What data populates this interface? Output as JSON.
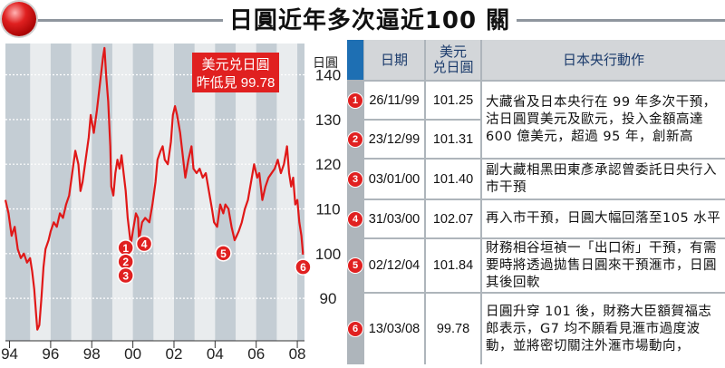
{
  "title": "日圓近年多次逼近100 關",
  "chart_data": {
    "type": "line",
    "x_range": [
      1993.8,
      2008.35
    ],
    "ylim": [
      80.5,
      147
    ],
    "y_ticks": [
      140,
      130,
      120,
      110,
      100,
      90
    ],
    "y_unit": "日圓",
    "x_ticks": [
      {
        "label": "94",
        "x": 1994
      },
      {
        "label": "96",
        "x": 1996
      },
      {
        "label": "98",
        "x": 1998
      },
      {
        "label": "00",
        "x": 2000
      },
      {
        "label": "02",
        "x": 2002
      },
      {
        "label": "04",
        "x": 2004
      },
      {
        "label": "06",
        "x": 2006
      },
      {
        "label": "08",
        "x": 2008
      }
    ],
    "shaded_periods": [
      [
        1993.8,
        1995.0
      ],
      [
        1996.0,
        1997.0
      ],
      [
        1998.0,
        1999.0
      ],
      [
        2000.0,
        2001.0
      ],
      [
        2002.0,
        2003.0
      ],
      [
        2004.0,
        2005.0
      ],
      [
        2006.0,
        2007.0
      ],
      [
        2008.0,
        2008.35
      ]
    ],
    "callout": {
      "line1": "美元兑日圓",
      "line2": "昨低見 99.78"
    },
    "series": [
      {
        "color": "#e01818",
        "points": [
          [
            1993.8,
            112
          ],
          [
            1993.95,
            109
          ],
          [
            1994.1,
            104
          ],
          [
            1994.25,
            106
          ],
          [
            1994.4,
            101
          ],
          [
            1994.55,
            99
          ],
          [
            1994.7,
            100
          ],
          [
            1994.85,
            98
          ],
          [
            1995.0,
            99
          ],
          [
            1995.1,
            96
          ],
          [
            1995.2,
            92
          ],
          [
            1995.3,
            86
          ],
          [
            1995.35,
            83
          ],
          [
            1995.45,
            84
          ],
          [
            1995.55,
            90
          ],
          [
            1995.65,
            97
          ],
          [
            1995.75,
            101
          ],
          [
            1995.9,
            103
          ],
          [
            1996.0,
            105
          ],
          [
            1996.15,
            107
          ],
          [
            1996.3,
            106
          ],
          [
            1996.45,
            109
          ],
          [
            1996.6,
            108
          ],
          [
            1996.75,
            111
          ],
          [
            1996.9,
            113
          ],
          [
            1997.05,
            118
          ],
          [
            1997.2,
            123
          ],
          [
            1997.35,
            120
          ],
          [
            1997.45,
            114
          ],
          [
            1997.55,
            116
          ],
          [
            1997.7,
            121
          ],
          [
            1997.85,
            126
          ],
          [
            1997.95,
            131
          ],
          [
            1998.1,
            127
          ],
          [
            1998.25,
            132
          ],
          [
            1998.4,
            138
          ],
          [
            1998.55,
            144
          ],
          [
            1998.62,
            146
          ],
          [
            1998.7,
            140
          ],
          [
            1998.8,
            134
          ],
          [
            1998.9,
            124
          ],
          [
            1998.95,
            115
          ],
          [
            1999.05,
            113
          ],
          [
            1999.15,
            118
          ],
          [
            1999.25,
            121
          ],
          [
            1999.35,
            119
          ],
          [
            1999.45,
            122
          ],
          [
            1999.55,
            118
          ],
          [
            1999.65,
            114
          ],
          [
            1999.75,
            108
          ],
          [
            1999.85,
            104
          ],
          [
            1999.9,
            102
          ],
          [
            2000.0,
            105
          ],
          [
            2000.15,
            109
          ],
          [
            2000.25,
            108
          ],
          [
            2000.3,
            103
          ],
          [
            2000.45,
            107
          ],
          [
            2000.6,
            108
          ],
          [
            2000.8,
            107
          ],
          [
            2000.95,
            111
          ],
          [
            2001.1,
            116
          ],
          [
            2001.2,
            121
          ],
          [
            2001.35,
            123
          ],
          [
            2001.45,
            124
          ],
          [
            2001.55,
            121
          ],
          [
            2001.7,
            120
          ],
          [
            2001.85,
            125
          ],
          [
            2001.95,
            131
          ],
          [
            2002.05,
            133
          ],
          [
            2002.15,
            131
          ],
          [
            2002.3,
            127
          ],
          [
            2002.45,
            121
          ],
          [
            2002.55,
            117
          ],
          [
            2002.7,
            121
          ],
          [
            2002.85,
            124
          ],
          [
            2002.95,
            119
          ],
          [
            2003.1,
            118
          ],
          [
            2003.25,
            119
          ],
          [
            2003.4,
            117
          ],
          [
            2003.55,
            118
          ],
          [
            2003.7,
            114
          ],
          [
            2003.85,
            110
          ],
          [
            2003.95,
            107
          ],
          [
            2004.1,
            106
          ],
          [
            2004.25,
            111
          ],
          [
            2004.4,
            109
          ],
          [
            2004.5,
            111
          ],
          [
            2004.65,
            110
          ],
          [
            2004.8,
            106
          ],
          [
            2004.95,
            103
          ],
          [
            2005.05,
            104
          ],
          [
            2005.15,
            105
          ],
          [
            2005.3,
            107
          ],
          [
            2005.45,
            110
          ],
          [
            2005.6,
            112
          ],
          [
            2005.75,
            116
          ],
          [
            2005.9,
            120
          ],
          [
            2006.05,
            117
          ],
          [
            2006.15,
            118
          ],
          [
            2006.3,
            112
          ],
          [
            2006.45,
            115
          ],
          [
            2006.6,
            117
          ],
          [
            2006.75,
            118
          ],
          [
            2006.9,
            119
          ],
          [
            2007.05,
            121
          ],
          [
            2007.2,
            118
          ],
          [
            2007.35,
            120
          ],
          [
            2007.5,
            124
          ],
          [
            2007.6,
            118
          ],
          [
            2007.7,
            115
          ],
          [
            2007.8,
            117
          ],
          [
            2007.9,
            111
          ],
          [
            2008.0,
            112
          ],
          [
            2008.1,
            107
          ],
          [
            2008.2,
            104
          ],
          [
            2008.28,
            99.78
          ]
        ]
      }
    ],
    "markers": [
      {
        "label": "1",
        "x": 1999.65,
        "y": 101.3
      },
      {
        "label": "2",
        "x": 1999.65,
        "y": 98.2
      },
      {
        "label": "3",
        "x": 1999.65,
        "y": 95.1
      },
      {
        "label": "4",
        "x": 2000.55,
        "y": 102.2
      },
      {
        "label": "5",
        "x": 2004.4,
        "y": 100.1
      },
      {
        "label": "6",
        "x": 2008.28,
        "y": 97.0
      }
    ]
  },
  "table": {
    "headers": {
      "date": "日期",
      "value_line1": "美元",
      "value_line2": "兑日圓",
      "action": "日本央行動作"
    },
    "rows": [
      {
        "num": "1",
        "date": "26/11/99",
        "value": "101.25",
        "action": "大藏省及日本央行在 99 年多次干預，沽日圓買美元及歐元，投入金額高達 600 億美元，超過 95 年，創新高"
      },
      {
        "num": "2",
        "date": "23/12/99",
        "value": "101.31",
        "action": ""
      },
      {
        "num": "3",
        "date": "03/01/00",
        "value": "101.40",
        "action": "副大藏相黑田東彥承認曾委託日央行入市干預"
      },
      {
        "num": "4",
        "date": "31/03/00",
        "value": "102.07",
        "action": "再入市干預，日圓大幅回落至105 水平"
      },
      {
        "num": "5",
        "date": "02/12/04",
        "value": "101.84",
        "action": "財務相谷垣禎一「出口術」干預，有需要時將透過拋售日圓來干預滙市，日圓其後回軟"
      },
      {
        "num": "6",
        "date": "13/03/08",
        "value": "99.78",
        "action": "日圓升穿 101 後，財務大臣額賀福志郎表示，G7 均不願看見滙市過度波動，並將密切關注外滙市場動向，"
      }
    ]
  },
  "colors": {
    "line": "#e01818",
    "shade": "#c4cdd4",
    "marker": "#e02020",
    "callout_bg": "#e02020",
    "table_border": "#aeb5bb",
    "header_bg": "#d3d6d9"
  }
}
